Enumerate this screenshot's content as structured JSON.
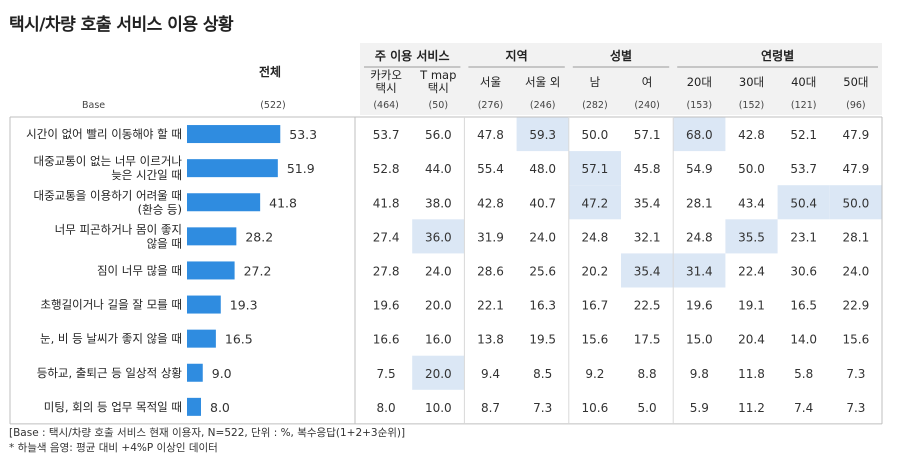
{
  "title": "택시/차량 호출 서비스 이용 상황",
  "header": {
    "total_label": "전체",
    "base_label": "Base",
    "groups": [
      {
        "label": "주 이용 서비스",
        "span": 2
      },
      {
        "label": "지역",
        "span": 2
      },
      {
        "label": "성별",
        "span": 2
      },
      {
        "label": "연령별",
        "span": 4
      }
    ],
    "columns": [
      {
        "label": [
          "카카오",
          "택시"
        ],
        "base": "(464)"
      },
      {
        "label": [
          "T map",
          "택시"
        ],
        "base": "(50)"
      },
      {
        "label": [
          "서울"
        ],
        "base": "(276)"
      },
      {
        "label": [
          "서울 외"
        ],
        "base": "(246)"
      },
      {
        "label": [
          "남"
        ],
        "base": "(282)"
      },
      {
        "label": [
          "여"
        ],
        "base": "(240)"
      },
      {
        "label": [
          "20대"
        ],
        "base": "(153)"
      },
      {
        "label": [
          "30대"
        ],
        "base": "(152)"
      },
      {
        "label": [
          "40대"
        ],
        "base": "(121)"
      },
      {
        "label": [
          "50대"
        ],
        "base": "(96)"
      }
    ],
    "total_base": "(522)"
  },
  "colors": {
    "bar": "#2f8ce0",
    "highlight": "#dbe7f5",
    "header_bg": "#f2f2f2",
    "border": "#bfbfbf"
  },
  "chart_data": {
    "type": "bar",
    "categories": [
      [
        "시간이 없어 빨리 이동해야 할 때"
      ],
      [
        "대중교통이 없는 너무 이르거나",
        "늦은 시간일 때"
      ],
      [
        "대중교통을 이용하기 어려울 때",
        "(환승 등)"
      ],
      [
        "너무 피곤하거나 몸이 좋지",
        "않을 때"
      ],
      [
        "짐이 너무 많을 때"
      ],
      [
        "초행길이거나 길을 잘 모를 때"
      ],
      [
        "눈, 비 등 날씨가 좋지 않을 때"
      ],
      [
        "등하교, 출퇴근 등 일상적 상황"
      ],
      [
        "미팅, 회의 등 업무 목적일 때"
      ]
    ],
    "values": [
      53.3,
      51.9,
      41.8,
      28.2,
      27.2,
      19.3,
      16.5,
      9.0,
      8.0
    ],
    "value_labels": [
      "53.3",
      "51.9",
      "41.8",
      "28.2",
      "27.2",
      "19.3",
      "16.5",
      "9.0",
      "8.0"
    ],
    "xlim": [
      0,
      100
    ],
    "table": [
      [
        "53.7",
        "56.0",
        "47.8",
        "59.3",
        "50.0",
        "57.1",
        "68.0",
        "42.8",
        "52.1",
        "47.9"
      ],
      [
        "52.8",
        "44.0",
        "55.4",
        "48.0",
        "57.1",
        "45.8",
        "54.9",
        "50.0",
        "53.7",
        "47.9"
      ],
      [
        "41.8",
        "38.0",
        "42.8",
        "40.7",
        "47.2",
        "35.4",
        "28.1",
        "43.4",
        "50.4",
        "50.0"
      ],
      [
        "27.4",
        "36.0",
        "31.9",
        "24.0",
        "24.8",
        "32.1",
        "24.8",
        "35.5",
        "23.1",
        "28.1"
      ],
      [
        "27.8",
        "24.0",
        "28.6",
        "25.6",
        "20.2",
        "35.4",
        "31.4",
        "22.4",
        "30.6",
        "24.0"
      ],
      [
        "19.6",
        "20.0",
        "22.1",
        "16.3",
        "16.7",
        "22.5",
        "19.6",
        "19.1",
        "16.5",
        "22.9"
      ],
      [
        "16.6",
        "16.0",
        "13.8",
        "19.5",
        "15.6",
        "17.5",
        "15.0",
        "20.4",
        "14.0",
        "15.6"
      ],
      [
        "7.5",
        "20.0",
        "9.4",
        "8.5",
        "9.2",
        "8.8",
        "9.8",
        "11.8",
        "5.8",
        "7.3"
      ],
      [
        "8.0",
        "10.0",
        "8.7",
        "7.3",
        "10.6",
        "5.0",
        "5.9",
        "11.2",
        "7.4",
        "7.3"
      ]
    ],
    "highlighted": [
      [
        0,
        3
      ],
      [
        0,
        6
      ],
      [
        1,
        4
      ],
      [
        2,
        4
      ],
      [
        2,
        8
      ],
      [
        2,
        9
      ],
      [
        3,
        1
      ],
      [
        3,
        7
      ],
      [
        4,
        5
      ],
      [
        4,
        6
      ],
      [
        7,
        1
      ]
    ]
  },
  "footnotes": [
    "[Base : 택시/차량 호출 서비스 현재 이용자, N=522, 단위 : %, 복수응답(1+2+3순위)]",
    "* 하늘색 음영: 평균 대비 +4%P 이상인 데이터"
  ]
}
